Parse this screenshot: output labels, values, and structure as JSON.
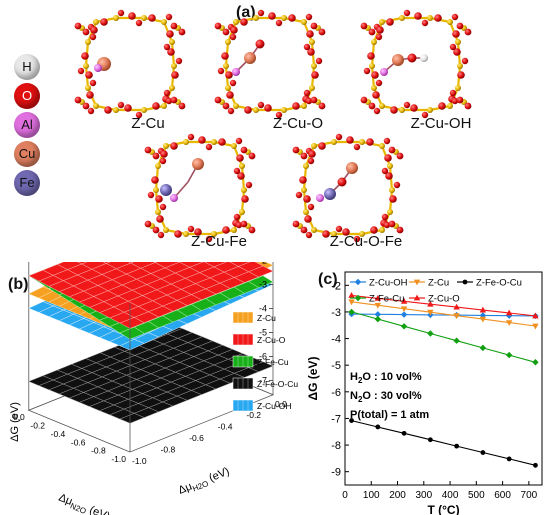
{
  "panels": {
    "a": "(a)",
    "b": "(b)",
    "c": "(c)"
  },
  "elements": [
    {
      "symbol": "H",
      "color": "#e8e8e8",
      "text_color": "#111"
    },
    {
      "symbol": "O",
      "color": "#e01010",
      "text_color": "#ffffff"
    },
    {
      "symbol": "Al",
      "color": "#e070e0",
      "text_color": "#111"
    },
    {
      "symbol": "Cu",
      "color": "#e08060",
      "text_color": "#111"
    },
    {
      "symbol": "Fe",
      "color": "#7068b0",
      "text_color": "#111"
    }
  ],
  "structures": {
    "z_cu": "Z-Cu",
    "z_cu_o": "Z-Cu-O",
    "z_cu_oh": "Z-Cu-OH",
    "z_cu_fe": "Z-Cu-Fe",
    "z_cu_o_fe": "Z-Cu-O-Fe"
  },
  "surface_plot": {
    "zlabel": "ΔG (eV)",
    "xlabel_main": "Δμ",
    "xlabel_sub": "N2O",
    "xlabel_unit": "(eV)",
    "ylabel_main": "Δμ",
    "ylabel_sub": "H2O",
    "ylabel_unit": "(eV)",
    "z_ticks": [
      "-2",
      "-3",
      "-4",
      "-5",
      "-6",
      "-7"
    ],
    "x_ticks": [
      "-1.0",
      "-0.8",
      "-0.6",
      "-0.4",
      "-0.2",
      "0.0"
    ],
    "y_ticks": [
      "0.0",
      "-0.2",
      "-0.4",
      "-0.6",
      "-0.8",
      "-1.0"
    ],
    "legend": [
      {
        "label": "Z-Cu",
        "color": "#f5a020"
      },
      {
        "label": "Z-Cu-O",
        "color": "#f01818"
      },
      {
        "label": "Z-Fe-Cu",
        "color": "#18b018"
      },
      {
        "label": "Z-Fe-O-Cu",
        "color": "#101010"
      },
      {
        "label": "Z-Cu-OH",
        "color": "#28a8f0"
      }
    ]
  },
  "chart_data": {
    "type": "line",
    "xlabel": "T (°C)",
    "ylabel": "ΔG (eV)",
    "xlim": [
      0,
      750
    ],
    "ylim": [
      -9.5,
      -1.5
    ],
    "x_ticks": [
      0,
      100,
      200,
      300,
      400,
      500,
      600,
      700
    ],
    "y_ticks": [
      -2,
      -3,
      -4,
      -5,
      -6,
      -7,
      -8,
      -9
    ],
    "x": [
      25,
      125,
      225,
      325,
      425,
      525,
      625,
      725
    ],
    "series": [
      {
        "name": "Z-Cu-OH",
        "color": "#2080e0",
        "marker": "diamond",
        "values": [
          -3.08,
          -3.09,
          -3.1,
          -3.11,
          -3.12,
          -3.13,
          -3.14,
          -3.15
        ]
      },
      {
        "name": "Z-Cu",
        "color": "#f09020",
        "marker": "triangle-down",
        "values": [
          -2.62,
          -2.75,
          -2.88,
          -3.01,
          -3.14,
          -3.27,
          -3.4,
          -3.53
        ]
      },
      {
        "name": "Z-Fe-O-Cu",
        "color": "#000000",
        "marker": "circle",
        "values": [
          -7.08,
          -7.32,
          -7.56,
          -7.8,
          -8.04,
          -8.28,
          -8.52,
          -8.76
        ]
      },
      {
        "name": "Z-Fe-Cu",
        "color": "#10a010",
        "marker": "diamond",
        "values": [
          -3.0,
          -3.27,
          -3.54,
          -3.81,
          -4.08,
          -4.35,
          -4.62,
          -4.89
        ]
      },
      {
        "name": "Z-Cu-O",
        "color": "#f01818",
        "marker": "triangle-up",
        "values": [
          -2.38,
          -2.49,
          -2.6,
          -2.71,
          -2.82,
          -2.93,
          -3.04,
          -3.15
        ]
      }
    ],
    "annotations": [
      "H2O : 10 vol%",
      "N2O : 30 vol%",
      "P(total) = 1 atm"
    ],
    "annotation_parts": [
      {
        "pre": "H",
        "sub": "2",
        "post": "O : 10 vol%"
      },
      {
        "pre": "N",
        "sub": "2",
        "post": "O : 30 vol%"
      },
      {
        "pre": "P(total) = 1 atm",
        "sub": "",
        "post": ""
      }
    ]
  }
}
